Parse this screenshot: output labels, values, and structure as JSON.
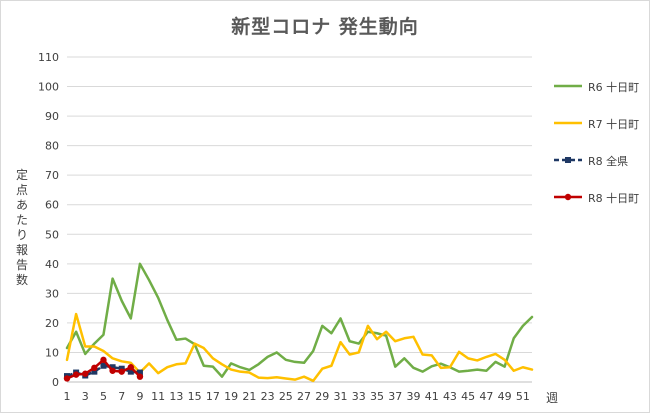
{
  "chart_data": {
    "type": "line",
    "title": "新型コロナ 発生動向",
    "ylabel": "定点あたり報告数",
    "xlabel": "週",
    "ylim": [
      0,
      110
    ],
    "yticks": [
      0,
      10,
      20,
      30,
      40,
      50,
      60,
      70,
      80,
      90,
      100,
      110
    ],
    "xlim": [
      1,
      52
    ],
    "xticks": [
      1,
      3,
      5,
      7,
      9,
      11,
      13,
      15,
      17,
      19,
      21,
      23,
      25,
      27,
      29,
      31,
      33,
      35,
      37,
      39,
      41,
      43,
      45,
      47,
      49,
      51
    ],
    "grid": "horizontal",
    "legend_position": "right",
    "series": [
      {
        "name": "R6 十日町",
        "color": "#70AD47",
        "marker": "none",
        "dash": "solid",
        "x": [
          1,
          2,
          3,
          4,
          5,
          6,
          7,
          8,
          9,
          10,
          11,
          12,
          13,
          14,
          15,
          16,
          17,
          18,
          19,
          20,
          21,
          22,
          23,
          24,
          25,
          26,
          27,
          28,
          29,
          30,
          31,
          32,
          33,
          34,
          35,
          36,
          37,
          38,
          39,
          40,
          41,
          42,
          43,
          44,
          45,
          46,
          47,
          48,
          49,
          50,
          51,
          52
        ],
        "values": [
          11.5,
          17,
          9.5,
          13,
          16,
          35,
          27.5,
          21.5,
          40,
          34.5,
          28.5,
          21,
          14.3,
          14.7,
          12.8,
          5.5,
          5.2,
          1.8,
          6.3,
          5,
          4.1,
          6,
          8.5,
          10,
          7.5,
          6.8,
          6.5,
          10.5,
          19,
          16.5,
          21.5,
          13.8,
          13,
          17,
          16.5,
          15.7,
          5.2,
          8,
          4.8,
          3.5,
          5.3,
          6.2,
          5,
          3.5,
          3.8,
          4.2,
          3.8,
          6.8,
          5.2,
          14.8,
          19,
          22
        ]
      },
      {
        "name": "R7 十日町",
        "color": "#FFC000",
        "marker": "none",
        "dash": "solid",
        "x": [
          1,
          2,
          3,
          4,
          5,
          6,
          7,
          8,
          9,
          10,
          11,
          12,
          13,
          14,
          15,
          16,
          17,
          18,
          19,
          20,
          21,
          22,
          23,
          24,
          25,
          26,
          27,
          28,
          29,
          30,
          31,
          32,
          33,
          34,
          35,
          36,
          37,
          38,
          39,
          40,
          41,
          42,
          43,
          44,
          45,
          46,
          47,
          48,
          49,
          50,
          51,
          52
        ],
        "values": [
          7.5,
          23,
          12,
          12,
          10.5,
          8,
          7,
          6.5,
          3.2,
          6.3,
          3,
          5,
          6,
          6.3,
          13,
          11.5,
          8,
          6,
          4.2,
          3.5,
          3.2,
          1.5,
          1.3,
          1.6,
          1.2,
          0.8,
          1.8,
          0.4,
          4.5,
          5.5,
          13.5,
          9.3,
          10,
          19,
          14.5,
          17,
          13.8,
          14.8,
          15.3,
          9.3,
          9,
          4.8,
          5,
          10.2,
          8,
          7.3,
          8.5,
          9.5,
          7.5,
          3.8,
          5,
          4.2
        ]
      },
      {
        "name": "R8 全県",
        "color": "#1F3864",
        "marker": "square",
        "dash": "dashed",
        "x": [
          1,
          2,
          3,
          4,
          5,
          6,
          7,
          8,
          9
        ],
        "values": [
          2,
          3.2,
          2.2,
          3.5,
          5.5,
          5,
          4.5,
          3.5,
          3.2
        ]
      },
      {
        "name": "R8 十日町",
        "color": "#C00000",
        "marker": "circle",
        "dash": "solid",
        "x": [
          1,
          2,
          3,
          4,
          5,
          6,
          7,
          8,
          9
        ],
        "values": [
          1.2,
          2.5,
          2.8,
          4.8,
          7.5,
          3.8,
          3.5,
          5,
          1.8
        ]
      }
    ]
  }
}
